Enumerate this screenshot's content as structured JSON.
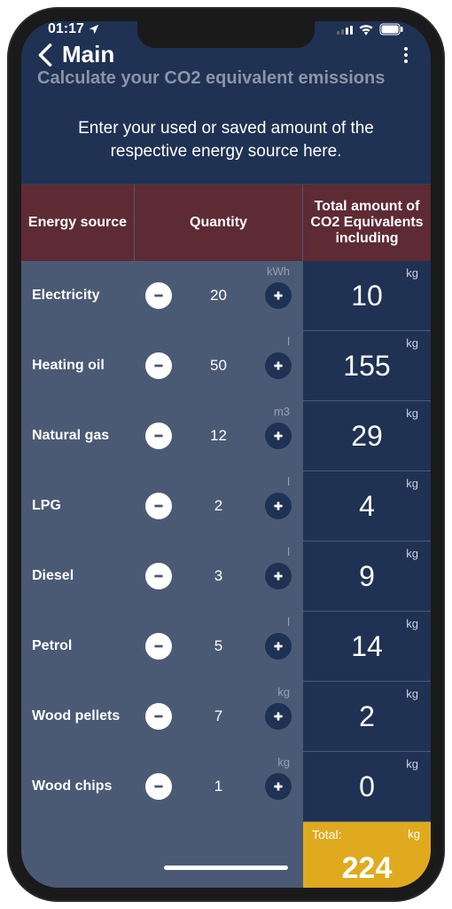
{
  "status": {
    "time": "01:17",
    "location_icon": "location-arrow"
  },
  "nav": {
    "title": "Main",
    "subtitle": "Calculate your CO2 equivalent emissions"
  },
  "intro": "Enter your used or saved amount of the respective energy source here.",
  "columns": {
    "source": "Energy source",
    "quantity": "Quantity",
    "total": "Total amount of CO2 Equivalents including"
  },
  "units": {
    "result": "kg"
  },
  "rows": [
    {
      "source": "Electricity",
      "qty": 20,
      "unit": "kWh",
      "total": 10
    },
    {
      "source": "Heating oil",
      "qty": 50,
      "unit": "l",
      "total": 155
    },
    {
      "source": "Natural gas",
      "qty": 12,
      "unit": "m3",
      "total": 29
    },
    {
      "source": "LPG",
      "qty": 2,
      "unit": "l",
      "total": 4
    },
    {
      "source": "Diesel",
      "qty": 3,
      "unit": "l",
      "total": 9
    },
    {
      "source": "Petrol",
      "qty": 5,
      "unit": "l",
      "total": 14
    },
    {
      "source": "Wood pellets",
      "qty": 7,
      "unit": "kg",
      "total": 2
    },
    {
      "source": "Wood chips",
      "qty": 1,
      "unit": "kg",
      "total": 0
    }
  ],
  "footer": {
    "label": "Total:",
    "unit": "kg",
    "value": 224
  },
  "colors": {
    "screen_bg": "#1f3253",
    "header_bg": "#5e2a34",
    "cell_bg": "#4b5a74",
    "accent": "#e0aa1f",
    "border": "#4a5a74",
    "muted_text": "#8a95a5"
  }
}
